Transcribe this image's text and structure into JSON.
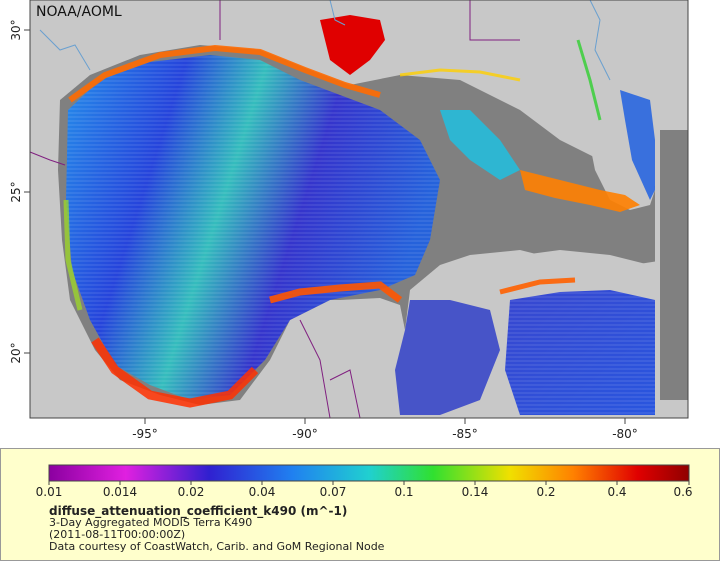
{
  "attribution": "NOAA/AOML",
  "axes": {
    "lon_ticks": [
      "-95°",
      "-90°",
      "-85°",
      "-80°"
    ],
    "lat_ticks": [
      "30°",
      "25°",
      "20°"
    ]
  },
  "legend": {
    "variable": "diffuse_attenuation_coefficient_k490 (m^-1)",
    "subtitle": "3-Day Aggregated MODIS Terra K490",
    "date": "(2011-08-11T00:00:00Z)",
    "credit": "Data courtesy of CoastWatch, Carib. and GoM Regional Node",
    "ticks": [
      "0.01",
      "0.014",
      "0.02",
      "0.04",
      "0.07",
      "0.1",
      "0.14",
      "0.2",
      "0.4",
      "0.6"
    ],
    "colors": [
      "#8b00a0",
      "#e020e0",
      "#3020d0",
      "#2080f0",
      "#20d0d0",
      "#30e030",
      "#f0e000",
      "#ff8000",
      "#e00000",
      "#900000"
    ]
  },
  "colors": {
    "land": "#c8c8c8",
    "no_data": "#808080",
    "border": "#802080",
    "river": "#6aa0d0"
  }
}
